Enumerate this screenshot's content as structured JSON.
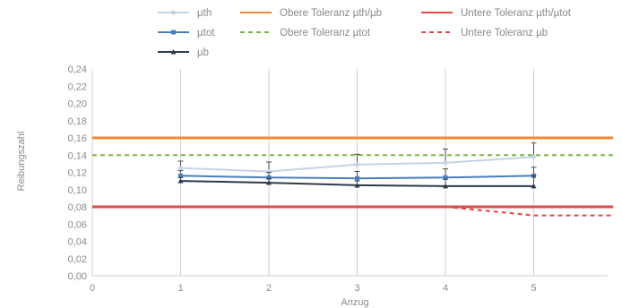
{
  "chart_data": {
    "type": "line",
    "xlabel": "Anzug",
    "ylabel": "Reibungszahl",
    "xlim": [
      0,
      5.9
    ],
    "ylim": [
      0,
      0.24
    ],
    "x_ticks": [
      "0",
      "1",
      "2",
      "3",
      "4",
      "5"
    ],
    "y_ticks": [
      "0,00",
      "0,02",
      "0,04",
      "0,06",
      "0,08",
      "0,10",
      "0,12",
      "0,14",
      "0,16",
      "0,18",
      "0,20",
      "0,22",
      "0,24"
    ],
    "grid": "vertical",
    "legend_position": "top",
    "x": [
      1,
      2,
      3,
      4,
      5
    ],
    "series": [
      {
        "name": "µth",
        "values": [
          0.125,
          0.121,
          0.129,
          0.131,
          0.138
        ],
        "err_upper": [
          0.008,
          0.011,
          0.012,
          0.016,
          0.016
        ],
        "color": "#c5d3e6",
        "marker": "circle"
      },
      {
        "name": "µtot",
        "values": [
          0.116,
          0.114,
          0.113,
          0.114,
          0.116
        ],
        "err_upper": [
          0.006,
          0.006,
          0.008,
          0.01,
          0.01
        ],
        "color": "#4a7ebb",
        "marker": "square"
      },
      {
        "name": "µb",
        "values": [
          0.11,
          0.108,
          0.105,
          0.104,
          0.104
        ],
        "err_upper": [
          0.004,
          0.005,
          0.005,
          0.008,
          0.012
        ],
        "color": "#2f3b4c",
        "marker": "triangle"
      }
    ],
    "reference_lines": [
      {
        "name": "Obere Toleranz µth/µb",
        "x": [
          0,
          5.9
        ],
        "values": [
          0.16,
          0.16
        ],
        "color": "#f0883a",
        "dash": "solid"
      },
      {
        "name": "Obere Toleranz µtot",
        "x": [
          0,
          5.9
        ],
        "values": [
          0.14,
          0.14
        ],
        "color": "#7fb24a",
        "dash": "dashed"
      },
      {
        "name": "Untere Toleranz µth/µtot",
        "x": [
          0,
          5.9
        ],
        "values": [
          0.08,
          0.08
        ],
        "color": "#e04b4b",
        "dash": "solid"
      },
      {
        "name": "Untere Toleranz µb",
        "x": [
          4,
          4.5,
          5,
          5.9
        ],
        "values": [
          0.08,
          0.075,
          0.07,
          0.07
        ],
        "color": "#e04b4b",
        "dash": "dashed"
      }
    ]
  }
}
